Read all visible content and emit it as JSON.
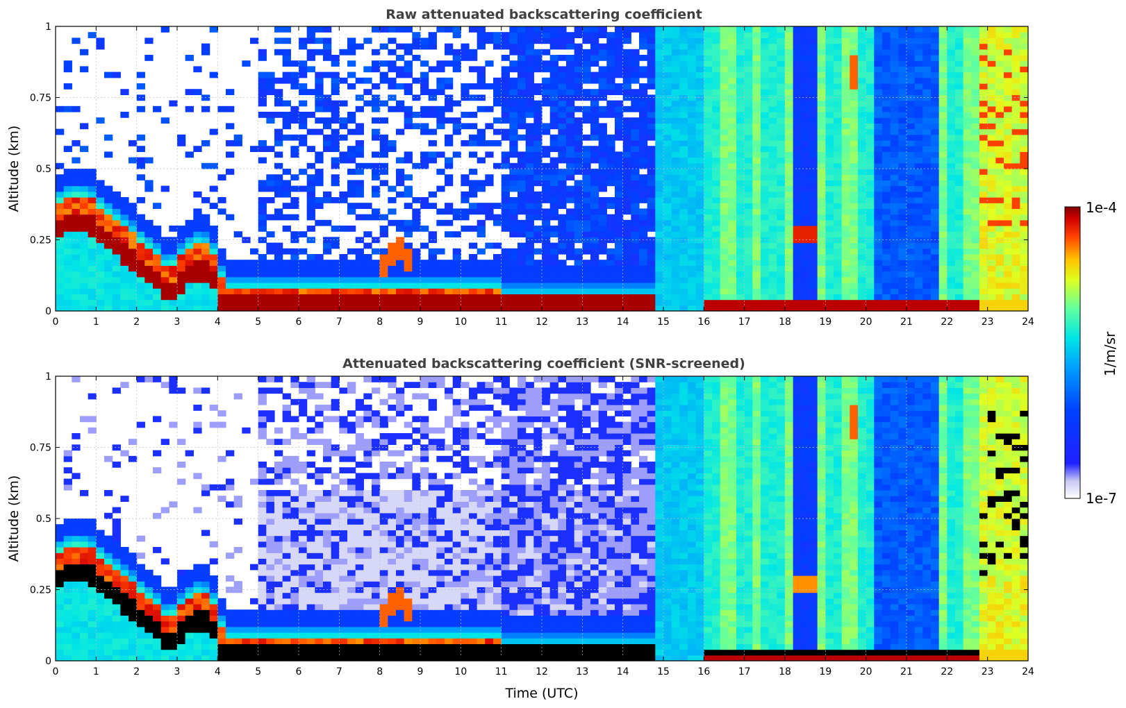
{
  "chart_data": [
    {
      "type": "heatmap",
      "title": "Raw attenuated backscattering coefficient",
      "xlabel": "",
      "ylabel": "Altitude (km)",
      "xlim": [
        0,
        24
      ],
      "ylim": [
        0,
        1
      ],
      "x_ticks": [
        "0",
        "1",
        "2",
        "3",
        "4",
        "5",
        "6",
        "7",
        "8",
        "9",
        "10",
        "11",
        "12",
        "13",
        "14",
        "15",
        "16",
        "17",
        "18",
        "19",
        "20",
        "21",
        "22",
        "23",
        "24"
      ],
      "y_ticks": [
        "0",
        "0.25",
        "0.5",
        "0.75",
        "1"
      ],
      "grid": true,
      "screened": false
    },
    {
      "type": "heatmap",
      "title": "Attenuated backscattering coefficient (SNR-screened)",
      "xlabel": "Time (UTC)",
      "ylabel": "Altitude (km)",
      "xlim": [
        0,
        24
      ],
      "ylim": [
        0,
        1
      ],
      "x_ticks": [
        "0",
        "1",
        "2",
        "3",
        "4",
        "5",
        "6",
        "7",
        "8",
        "9",
        "10",
        "11",
        "12",
        "13",
        "14",
        "15",
        "16",
        "17",
        "18",
        "19",
        "20",
        "21",
        "22",
        "23",
        "24"
      ],
      "y_ticks": [
        "0",
        "0.25",
        "0.5",
        "0.75",
        "1"
      ],
      "grid": true,
      "screened": true
    }
  ],
  "colorbar": {
    "label": "1/m/sr",
    "max_label": "1e-4",
    "min_label": "1e-7",
    "scale": "log",
    "range": [
      1e-07,
      0.0001
    ],
    "colormap": [
      "#e6e6fa",
      "#00008b",
      "#0000ff",
      "#00bfff",
      "#00ffff",
      "#7fff7f",
      "#ffff00",
      "#ff8000",
      "#ff0000",
      "#8b0000"
    ]
  }
}
